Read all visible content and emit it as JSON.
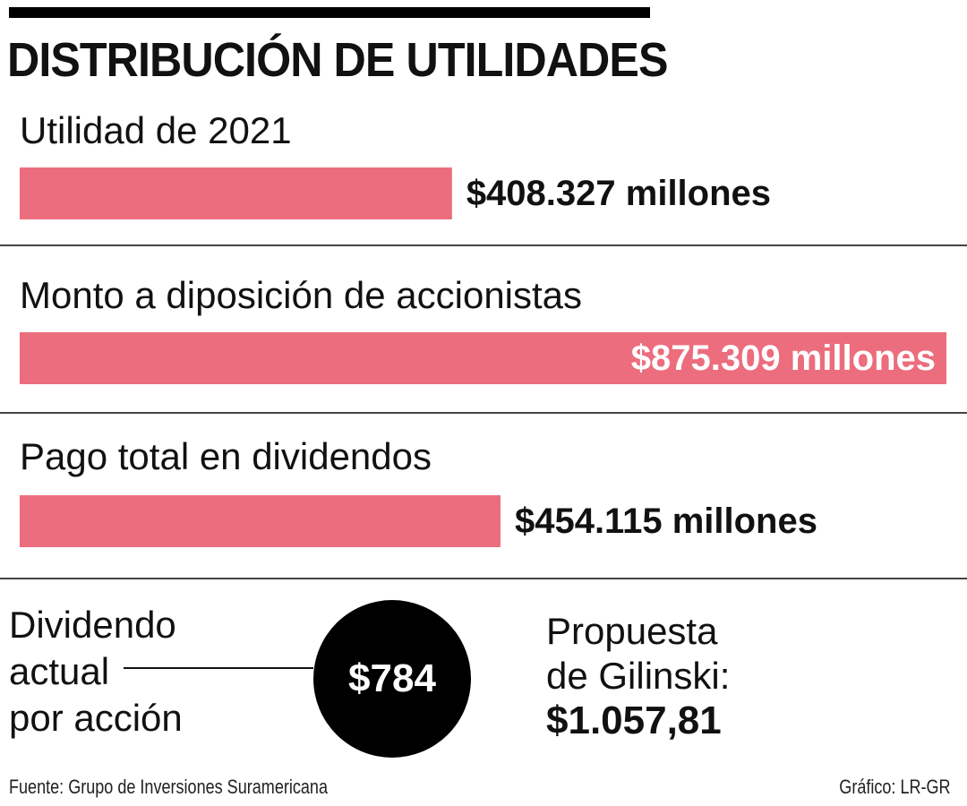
{
  "title": "DISTRIBUCIÓN DE UTILIDADES",
  "colors": {
    "bar": "#ec6d7d",
    "circle": "#000000"
  },
  "chart_data": {
    "type": "bar",
    "orientation": "horizontal",
    "title": "DISTRIBUCIÓN DE UTILIDADES",
    "unit": "millones",
    "categories": [
      "Utilidad de 2021",
      "Monto a diposición de accionistas",
      "Pago total en dividendos"
    ],
    "values": [
      408327,
      875309,
      454115
    ],
    "value_labels": [
      "$408.327 millones",
      "$875.309 millones",
      "$454.115 millones"
    ],
    "xlim": [
      0,
      875309
    ]
  },
  "dividend": {
    "label_lines": [
      "Dividendo",
      "actual",
      "por acción"
    ],
    "value": "$784"
  },
  "proposal": {
    "label_lines": [
      "Propuesta",
      "de Gilinski:"
    ],
    "value": "$1.057,81"
  },
  "footer": {
    "source": "Fuente: Grupo de Inversiones Suramericana",
    "credit": "Gráfico: LR-GR"
  }
}
